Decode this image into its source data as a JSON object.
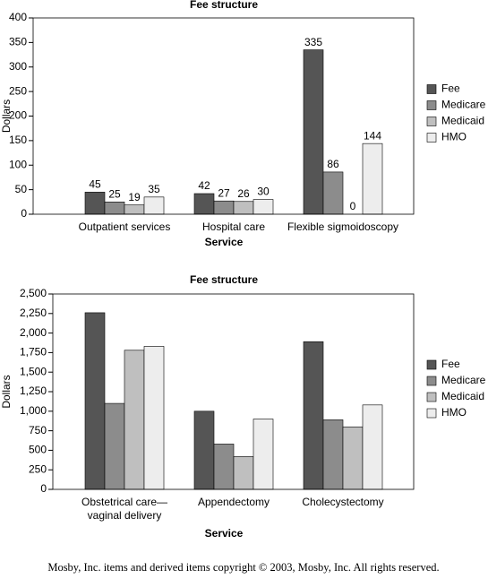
{
  "chart_data": [
    {
      "type": "bar",
      "title": "Fee structure",
      "x_label": "Service",
      "y_label": "Dollars",
      "categories": [
        "Outpatient services",
        "Hospital care",
        "Flexible sigmoidoscopy"
      ],
      "series": [
        {
          "name": "Fee",
          "color": "#555555",
          "values": [
            45,
            42,
            335
          ]
        },
        {
          "name": "Medicare",
          "color": "#8c8c8c",
          "values": [
            25,
            27,
            86
          ]
        },
        {
          "name": "Medicaid",
          "color": "#bfbfbf",
          "values": [
            19,
            26,
            0
          ]
        },
        {
          "name": "HMO",
          "color": "#ededed",
          "values": [
            35,
            30,
            144
          ]
        }
      ],
      "show_value_labels": true,
      "ylim": [
        0,
        400
      ],
      "yticks": [
        0,
        50,
        100,
        150,
        200,
        250,
        300,
        350,
        400
      ],
      "legend": "right"
    },
    {
      "type": "bar",
      "title": "Fee structure",
      "x_label": "Service",
      "y_label": "Dollars",
      "categories": [
        "Obstetrical care—\nvaginal delivery",
        "Appendectomy",
        "Cholecystectomy"
      ],
      "series": [
        {
          "name": "Fee",
          "color": "#555555",
          "values": [
            2260,
            1000,
            1890
          ]
        },
        {
          "name": "Medicare",
          "color": "#8c8c8c",
          "values": [
            1100,
            580,
            890
          ]
        },
        {
          "name": "Medicaid",
          "color": "#bfbfbf",
          "values": [
            1780,
            420,
            800
          ]
        },
        {
          "name": "HMO",
          "color": "#ededed",
          "values": [
            1830,
            900,
            1080
          ]
        }
      ],
      "show_value_labels": false,
      "ylim": [
        0,
        2500
      ],
      "yticks": [
        0,
        250,
        500,
        750,
        {
          "value": 1000,
          "label": "1,000"
        },
        {
          "value": 1250,
          "label": "1,250"
        },
        {
          "value": 1500,
          "label": "1,500"
        },
        {
          "value": 1750,
          "label": "1,750"
        },
        {
          "value": 2000,
          "label": "2,000"
        },
        {
          "value": 2250,
          "label": "2,250"
        },
        {
          "value": 2500,
          "label": "2,500"
        }
      ],
      "legend": "right"
    }
  ],
  "footer": "Mosby, Inc. items and derived items copyright © 2003, Mosby, Inc. All rights reserved."
}
